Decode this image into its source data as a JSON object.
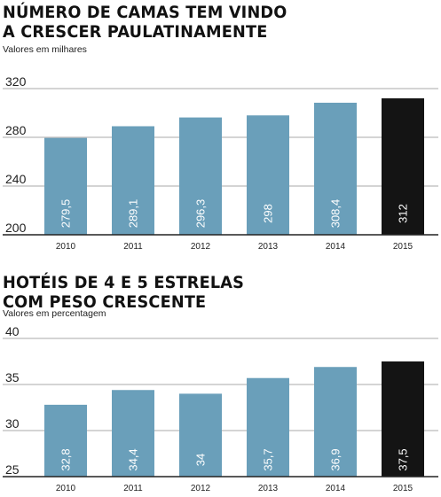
{
  "colors": {
    "bar": "#6a9fba",
    "highlight": "#141414",
    "grid": "#aaaaaa",
    "baseline": "#222222"
  },
  "chart_data": [
    {
      "type": "bar",
      "title_lines": [
        "NÚMERO DE CAMAS TEM VINDO",
        "A CRESCER PAULATINAMENTE"
      ],
      "subtitle": "Valores em milhares",
      "categories": [
        "2010",
        "2011",
        "2012",
        "2013",
        "2014",
        "2015"
      ],
      "values": [
        279.5,
        289.1,
        296.3,
        298,
        308.4,
        312
      ],
      "value_labels": [
        "279,5",
        "289,1",
        "296,3",
        "298",
        "308,4",
        "312"
      ],
      "highlight_index": 5,
      "yticks": [
        200,
        240,
        280,
        320
      ],
      "ytick_labels": [
        "200",
        "240",
        "280",
        "320"
      ],
      "ylim": [
        200,
        320
      ],
      "grid": true
    },
    {
      "type": "bar",
      "title_lines": [
        "HOTÉIS DE 4 E 5 ESTRELAS",
        "COM PESO CRESCENTE"
      ],
      "subtitle": "Valores em percentagem",
      "categories": [
        "2010",
        "2011",
        "2012",
        "2013",
        "2014",
        "2015"
      ],
      "values": [
        32.8,
        34.4,
        34,
        35.7,
        36.9,
        37.5
      ],
      "value_labels": [
        "32,8",
        "34,4",
        "34",
        "35,7",
        "36,9",
        "37,5"
      ],
      "highlight_index": 5,
      "yticks": [
        25,
        30,
        35,
        40
      ],
      "ytick_labels": [
        "25",
        "30",
        "35",
        "40"
      ],
      "ylim": [
        25,
        40
      ],
      "grid": true
    }
  ]
}
